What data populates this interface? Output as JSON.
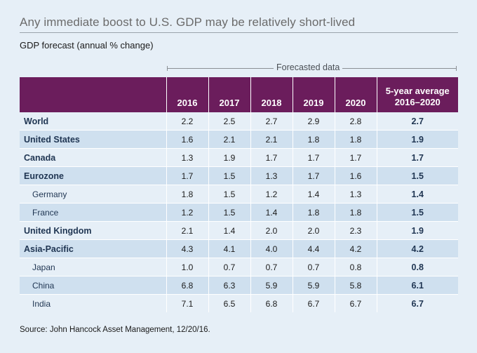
{
  "title": "Any immediate boost to U.S. GDP may be relatively short-lived",
  "subtitle": "GDP forecast (annual % change)",
  "forecast_label": "Forecasted data",
  "columns": {
    "y2016": "2016",
    "y2017": "2017",
    "y2018": "2018",
    "y2019": "2019",
    "y2020": "2020",
    "avg_line1": "5-year average",
    "avg_line2": "2016–2020"
  },
  "rows": [
    {
      "name": "World",
      "level": "region",
      "values": [
        "2.2",
        "2.5",
        "2.7",
        "2.9",
        "2.8"
      ],
      "avg": "2.7"
    },
    {
      "name": "United States",
      "level": "region",
      "values": [
        "1.6",
        "2.1",
        "2.1",
        "1.8",
        "1.8"
      ],
      "avg": "1.9"
    },
    {
      "name": "Canada",
      "level": "region",
      "values": [
        "1.3",
        "1.9",
        "1.7",
        "1.7",
        "1.7"
      ],
      "avg": "1.7"
    },
    {
      "name": "Eurozone",
      "level": "region",
      "values": [
        "1.7",
        "1.5",
        "1.3",
        "1.7",
        "1.6"
      ],
      "avg": "1.5"
    },
    {
      "name": "Germany",
      "level": "sub",
      "values": [
        "1.8",
        "1.5",
        "1.2",
        "1.4",
        "1.3"
      ],
      "avg": "1.4"
    },
    {
      "name": "France",
      "level": "sub",
      "values": [
        "1.2",
        "1.5",
        "1.4",
        "1.8",
        "1.8"
      ],
      "avg": "1.5"
    },
    {
      "name": "United Kingdom",
      "level": "region",
      "values": [
        "2.1",
        "1.4",
        "2.0",
        "2.0",
        "2.3"
      ],
      "avg": "1.9"
    },
    {
      "name": "Asia-Pacific",
      "level": "region",
      "values": [
        "4.3",
        "4.1",
        "4.0",
        "4.4",
        "4.2"
      ],
      "avg": "4.2"
    },
    {
      "name": "Japan",
      "level": "sub",
      "values": [
        "1.0",
        "0.7",
        "0.7",
        "0.7",
        "0.8"
      ],
      "avg": "0.8"
    },
    {
      "name": "China",
      "level": "sub",
      "values": [
        "6.8",
        "6.3",
        "5.9",
        "5.9",
        "5.8"
      ],
      "avg": "6.1"
    },
    {
      "name": "India",
      "level": "sub",
      "values": [
        "7.1",
        "6.5",
        "6.8",
        "6.7",
        "6.7"
      ],
      "avg": "6.7"
    }
  ],
  "source": "Source: John Hancock Asset Management, 12/20/16.",
  "colors": {
    "header_bg": "#6b1d5c",
    "band_light": "#e6eff7",
    "band_dark": "#cfe0ef",
    "label_text": "#1f3552"
  }
}
